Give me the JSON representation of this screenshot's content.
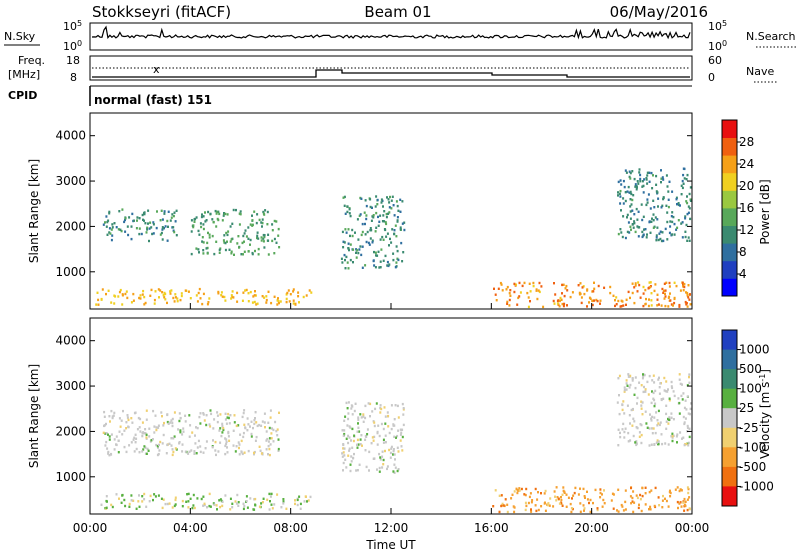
{
  "header": {
    "station": "Stokkseyri (fitACF)",
    "beam": "Beam 01",
    "date": "06/May/2016"
  },
  "strip": {
    "nsky_label": "N.Sky",
    "nsearch_label": "N.Search",
    "freq_label_line1": "Freq.",
    "freq_label_line2": "[MHz]",
    "nave_label": "Nave",
    "cpid_label": "CPID",
    "noise_ticks_left": [
      "10^5",
      "10^0"
    ],
    "noise_ticks_right": [
      "10^5",
      "10^0"
    ],
    "freq_ticks": [
      "18",
      "8"
    ],
    "nave_ticks": [
      "60",
      "0"
    ],
    "mode_label": "normal (fast) 151"
  },
  "colors": {
    "power_scale": [
      "#0000ff",
      "#1f3fc0",
      "#2f6f9f",
      "#3a8a70",
      "#58a85a",
      "#9ac840",
      "#f0d020",
      "#f5a018",
      "#f06010",
      "#e81010"
    ],
    "velocity_scale": [
      "#2040c0",
      "#2f6f9f",
      "#3a8a70",
      "#58b040",
      "#c8c8c8",
      "#f0d070",
      "#f5a030",
      "#f07010",
      "#e81010"
    ]
  },
  "chart_data": [
    {
      "type": "heatmap",
      "panel": "power",
      "ylabel": "Slant Range [km]",
      "yticks": [
        "1000",
        "2000",
        "3000",
        "4000"
      ],
      "ylim": [
        180,
        4500
      ],
      "colorbar_label": "Power [dB]",
      "colorbar_ticks": [
        "4",
        "8",
        "12",
        "16",
        "20",
        "24",
        "28"
      ],
      "clim": [
        0,
        30
      ],
      "regions": [
        {
          "t": [
            0.2,
            8.8
          ],
          "r": [
            300,
            650
          ],
          "v": 22
        },
        {
          "t": [
            0.5,
            3.5
          ],
          "r": [
            1700,
            2400
          ],
          "v": 10
        },
        {
          "t": [
            4.0,
            7.5
          ],
          "r": [
            1400,
            2400
          ],
          "v": 12
        },
        {
          "t": [
            10.0,
            12.5
          ],
          "r": [
            1100,
            2700
          ],
          "v": 10
        },
        {
          "t": [
            16.0,
            24.0
          ],
          "r": [
            250,
            800
          ],
          "v": 24
        },
        {
          "t": [
            21.0,
            24.0
          ],
          "r": [
            1700,
            3300
          ],
          "v": 9
        }
      ]
    },
    {
      "type": "heatmap",
      "panel": "velocity",
      "ylabel": "Slant Range [km]",
      "yticks": [
        "1000",
        "2000",
        "3000",
        "4000"
      ],
      "ylim": [
        180,
        4500
      ],
      "xlabel": "Time UT",
      "xticks": [
        "00:00",
        "04:00",
        "08:00",
        "12:00",
        "16:00",
        "20:00",
        "00:00"
      ],
      "xlim": [
        0,
        24
      ],
      "colorbar_label": "Velocity",
      "colorbar_unit": "[m s",
      "colorbar_unit_exp": "-1",
      "colorbar_unit_close": "]",
      "colorbar_ticks": [
        "1000",
        "500",
        "100",
        "25",
        "-25",
        "-100",
        "-500",
        "-1000"
      ],
      "regions": [
        {
          "t": [
            0.2,
            8.8
          ],
          "r": [
            300,
            650
          ],
          "v": 60
        },
        {
          "t": [
            0.5,
            7.5
          ],
          "r": [
            1500,
            2500
          ],
          "v": 0
        },
        {
          "t": [
            10.0,
            12.5
          ],
          "r": [
            1100,
            2700
          ],
          "v": 0
        },
        {
          "t": [
            16.0,
            24.0
          ],
          "r": [
            250,
            800
          ],
          "v": -150
        },
        {
          "t": [
            21.0,
            24.0
          ],
          "r": [
            1700,
            3300
          ],
          "v": 0
        }
      ]
    }
  ]
}
